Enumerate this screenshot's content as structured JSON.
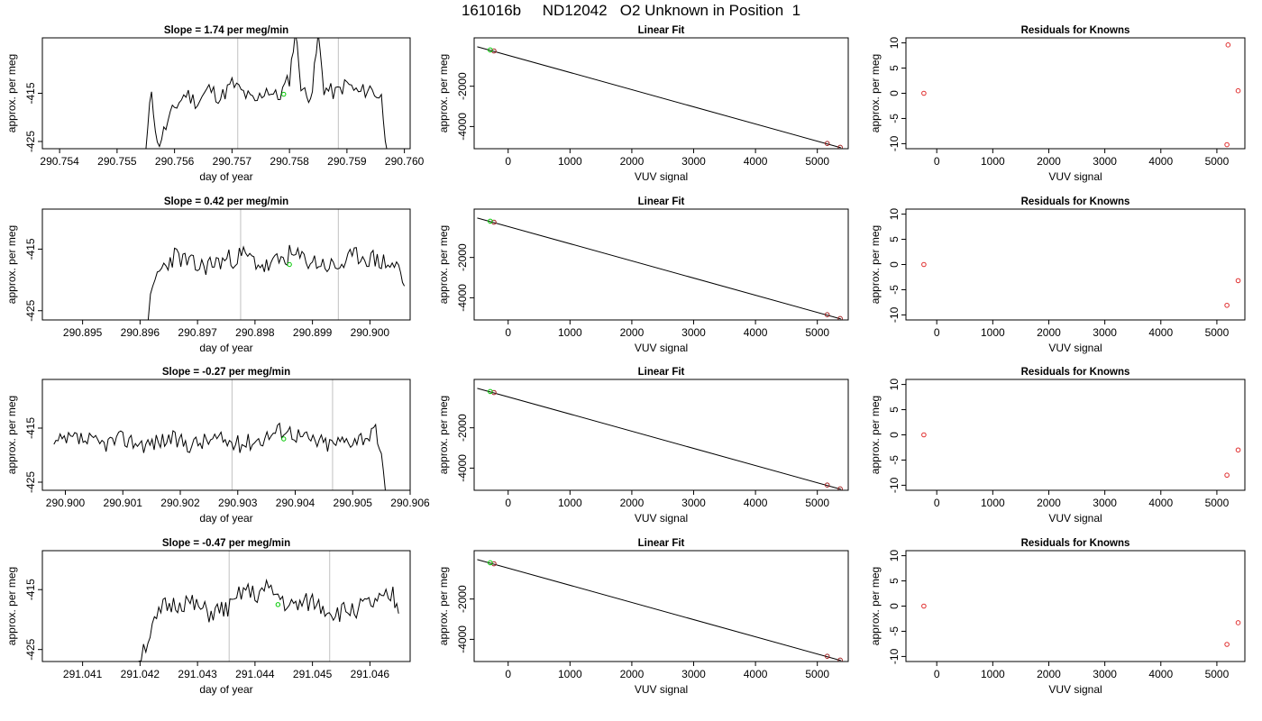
{
  "title": "161016b     ND12042   O2 Unknown in Position  1",
  "colors": {
    "trace": "#000000",
    "marker": "#00c800",
    "residual": "#e03030",
    "interval": "#c0c0c0"
  },
  "chart_data": [
    {
      "type": "line",
      "panel": "timeseries",
      "row": 0,
      "title": "Slope =  1.74  per meg/min",
      "xlabel": "day of year",
      "ylabel": "approx. per meg",
      "xlim": [
        290.7537,
        290.7601
      ],
      "ylim": [
        -426.5,
        -403.5
      ],
      "xticks": [
        "290.754",
        "290.755",
        "290.756",
        "290.757",
        "290.758",
        "290.759",
        "290.760"
      ],
      "yticks": [
        "-425",
        "-415"
      ],
      "vlines": [
        290.7571,
        290.75885
      ],
      "marker": {
        "x": 290.7579,
        "y": -415.2
      },
      "x": [
        290.7555,
        290.7556,
        290.7557,
        290.756,
        290.7562,
        290.7564,
        290.7566,
        290.7568,
        290.757,
        290.7572,
        290.7574,
        290.7576,
        290.7578,
        290.758,
        290.7581,
        290.7582,
        290.7583,
        290.7584,
        290.7585,
        290.7586,
        290.7588,
        290.759,
        290.7592,
        290.7594,
        290.7596,
        290.7597
      ],
      "y": [
        -427,
        -414,
        -426,
        -418,
        -415,
        -417,
        -414,
        -416,
        -413,
        -415,
        -417,
        -414,
        -416,
        -412,
        -402,
        -413,
        -416,
        -414,
        -403,
        -414,
        -415,
        -413,
        -415,
        -414,
        -416,
        -427
      ],
      "seed": 11
    },
    {
      "type": "line",
      "panel": "linearfit",
      "row": 0,
      "title": "Linear Fit",
      "xlabel": "VUV signal",
      "ylabel": "approx. per meg",
      "xlim": [
        -550,
        5500
      ],
      "ylim": [
        -5100,
        400
      ],
      "xticks": [
        "0",
        "1000",
        "2000",
        "3000",
        "4000",
        "5000"
      ],
      "yticks": [
        "-4000",
        "-2000"
      ],
      "fit_line": {
        "x": [
          -500,
          5380
        ],
        "y": [
          -40,
          -5050
        ]
      },
      "points_known": [
        {
          "x": -230,
          "y": -250
        },
        {
          "x": 5160,
          "y": -4840
        },
        {
          "x": 5370,
          "y": -5030
        }
      ],
      "points_unknown": [
        {
          "x": -290,
          "y": -200
        }
      ]
    },
    {
      "type": "scatter",
      "panel": "residuals",
      "row": 0,
      "title": "Residuals for Knowns",
      "xlabel": "VUV signal",
      "ylabel": "approx. per meg",
      "xlim": [
        -550,
        5500
      ],
      "ylim": [
        -11,
        11
      ],
      "xticks": [
        "0",
        "1000",
        "2000",
        "3000",
        "4000",
        "5000"
      ],
      "yticks": [
        "-10",
        "-5",
        "0",
        "5",
        "10"
      ],
      "points": [
        {
          "x": -230,
          "y": 0
        },
        {
          "x": 5200,
          "y": 9.6
        },
        {
          "x": 5380,
          "y": 0.5
        },
        {
          "x": 5180,
          "y": -10.2
        }
      ]
    },
    {
      "type": "line",
      "panel": "timeseries",
      "row": 1,
      "title": "Slope =  0.42  per meg/min",
      "xlabel": "day of year",
      "ylabel": "approx. per meg",
      "xlim": [
        290.8943,
        290.9007
      ],
      "ylim": [
        -426.5,
        -408.5
      ],
      "xticks": [
        "290.895",
        "290.896",
        "290.897",
        "290.898",
        "290.899",
        "290.900"
      ],
      "yticks": [
        "-425",
        "-415"
      ],
      "vlines": [
        290.89775,
        290.89945
      ],
      "marker": {
        "x": 290.8986,
        "y": -417.5
      },
      "x": [
        290.8961,
        290.8963,
        290.8966,
        290.897,
        290.8974,
        290.8978,
        290.8982,
        290.8986,
        290.899,
        290.8994,
        290.8998,
        290.9002,
        290.9005,
        290.9006
      ],
      "y": [
        -427,
        -419,
        -416,
        -418,
        -417,
        -416,
        -418,
        -416,
        -417,
        -418,
        -416,
        -417,
        -418,
        -421
      ],
      "seed": 23
    },
    {
      "type": "line",
      "panel": "linearfit",
      "row": 1,
      "title": "Linear Fit",
      "xlabel": "VUV signal",
      "ylabel": "approx. per meg",
      "xlim": [
        -550,
        5500
      ],
      "ylim": [
        -5100,
        400
      ],
      "xticks": [
        "0",
        "1000",
        "2000",
        "3000",
        "4000",
        "5000"
      ],
      "yticks": [
        "-4000",
        "-2000"
      ],
      "fit_line": {
        "x": [
          -500,
          5380
        ],
        "y": [
          -40,
          -5050
        ]
      },
      "points_known": [
        {
          "x": -230,
          "y": -250
        },
        {
          "x": 5160,
          "y": -4840
        },
        {
          "x": 5370,
          "y": -5030
        }
      ],
      "points_unknown": [
        {
          "x": -290,
          "y": -200
        }
      ]
    },
    {
      "type": "scatter",
      "panel": "residuals",
      "row": 1,
      "title": "Residuals for Knowns",
      "xlabel": "VUV signal",
      "ylabel": "approx. per meg",
      "xlim": [
        -550,
        5500
      ],
      "ylim": [
        -11,
        11
      ],
      "xticks": [
        "0",
        "1000",
        "2000",
        "3000",
        "4000",
        "5000"
      ],
      "yticks": [
        "-10",
        "-5",
        "0",
        "5",
        "10"
      ],
      "points": [
        {
          "x": -230,
          "y": 0
        },
        {
          "x": 5380,
          "y": -3.2
        },
        {
          "x": 5180,
          "y": -8.1
        }
      ]
    },
    {
      "type": "line",
      "panel": "timeseries",
      "row": 2,
      "title": "Slope =  -0.27  per meg/min",
      "xlabel": "day of year",
      "ylabel": "approx. per meg",
      "xlim": [
        290.8996,
        290.906
      ],
      "ylim": [
        -426.5,
        -406
      ],
      "xticks": [
        "290.900",
        "290.901",
        "290.902",
        "290.903",
        "290.904",
        "290.905",
        "290.906"
      ],
      "yticks": [
        "-425",
        "-415"
      ],
      "vlines": [
        290.9029,
        290.90465
      ],
      "marker": {
        "x": 290.9038,
        "y": -417
      },
      "x": [
        290.8998,
        290.9002,
        290.9006,
        290.901,
        290.9014,
        290.9018,
        290.9022,
        290.9026,
        290.903,
        290.9034,
        290.9038,
        290.9042,
        290.9046,
        290.905,
        290.9054,
        290.9055,
        290.9056
      ],
      "y": [
        -418,
        -417,
        -418,
        -417,
        -418,
        -417,
        -418,
        -417,
        -418,
        -417,
        -415,
        -417,
        -418,
        -417,
        -416,
        -421,
        -427
      ],
      "seed": 37
    },
    {
      "type": "line",
      "panel": "linearfit",
      "row": 2,
      "title": "Linear Fit",
      "xlabel": "VUV signal",
      "ylabel": "approx. per meg",
      "xlim": [
        -550,
        5500
      ],
      "ylim": [
        -5100,
        400
      ],
      "xticks": [
        "0",
        "1000",
        "2000",
        "3000",
        "4000",
        "5000"
      ],
      "yticks": [
        "-4000",
        "-2000"
      ],
      "fit_line": {
        "x": [
          -500,
          5380
        ],
        "y": [
          -40,
          -5050
        ]
      },
      "points_known": [
        {
          "x": -230,
          "y": -250
        },
        {
          "x": 5160,
          "y": -4840
        },
        {
          "x": 5370,
          "y": -5030
        }
      ],
      "points_unknown": [
        {
          "x": -290,
          "y": -200
        }
      ]
    },
    {
      "type": "scatter",
      "panel": "residuals",
      "row": 2,
      "title": "Residuals for Knowns",
      "xlabel": "VUV signal",
      "ylabel": "approx. per meg",
      "xlim": [
        -550,
        5500
      ],
      "ylim": [
        -11,
        11
      ],
      "xticks": [
        "0",
        "1000",
        "2000",
        "3000",
        "4000",
        "5000"
      ],
      "yticks": [
        "-10",
        "-5",
        "0",
        "5",
        "10"
      ],
      "points": [
        {
          "x": -230,
          "y": 0
        },
        {
          "x": 5380,
          "y": -3.0
        },
        {
          "x": 5180,
          "y": -8.0
        }
      ]
    },
    {
      "type": "line",
      "panel": "timeseries",
      "row": 3,
      "title": "Slope =  -0.47  per meg/min",
      "xlabel": "day of year",
      "ylabel": "approx. per meg",
      "xlim": [
        291.0403,
        291.0467
      ],
      "ylim": [
        -427,
        -408.5
      ],
      "xticks": [
        "291.041",
        "291.042",
        "291.043",
        "291.044",
        "291.045",
        "291.046"
      ],
      "yticks": [
        "-425",
        "-415"
      ],
      "vlines": [
        291.04355,
        291.0453
      ],
      "marker": {
        "x": 291.0444,
        "y": -417.5
      },
      "x": [
        291.0419,
        291.0421,
        291.0424,
        291.0428,
        291.0432,
        291.0436,
        291.0438,
        291.044,
        291.0442,
        291.0444,
        291.0446,
        291.045,
        291.0454,
        291.0458,
        291.0462,
        291.0464,
        291.0465
      ],
      "y": [
        -428,
        -424,
        -418,
        -417,
        -419,
        -418,
        -415,
        -416,
        -415,
        -416,
        -418,
        -417,
        -419,
        -418,
        -417,
        -416,
        -419
      ],
      "seed": 51
    },
    {
      "type": "line",
      "panel": "linearfit",
      "row": 3,
      "title": "Linear Fit",
      "xlabel": "VUV signal",
      "ylabel": "approx. per meg",
      "xlim": [
        -550,
        5500
      ],
      "ylim": [
        -5100,
        400
      ],
      "xticks": [
        "0",
        "1000",
        "2000",
        "3000",
        "4000",
        "5000"
      ],
      "yticks": [
        "-4000",
        "-2000"
      ],
      "fit_line": {
        "x": [
          -500,
          5380
        ],
        "y": [
          -40,
          -5050
        ]
      },
      "points_known": [
        {
          "x": -230,
          "y": -250
        },
        {
          "x": 5160,
          "y": -4840
        },
        {
          "x": 5370,
          "y": -5030
        }
      ],
      "points_unknown": [
        {
          "x": -290,
          "y": -200
        }
      ]
    },
    {
      "type": "scatter",
      "panel": "residuals",
      "row": 3,
      "title": "Residuals for Knowns",
      "xlabel": "VUV signal",
      "ylabel": "approx. per meg",
      "xlim": [
        -550,
        5500
      ],
      "ylim": [
        -11,
        11
      ],
      "xticks": [
        "0",
        "1000",
        "2000",
        "3000",
        "4000",
        "5000"
      ],
      "yticks": [
        "-10",
        "-5",
        "0",
        "5",
        "10"
      ],
      "points": [
        {
          "x": -230,
          "y": 0
        },
        {
          "x": 5380,
          "y": -3.3
        },
        {
          "x": 5180,
          "y": -7.6
        }
      ]
    }
  ]
}
